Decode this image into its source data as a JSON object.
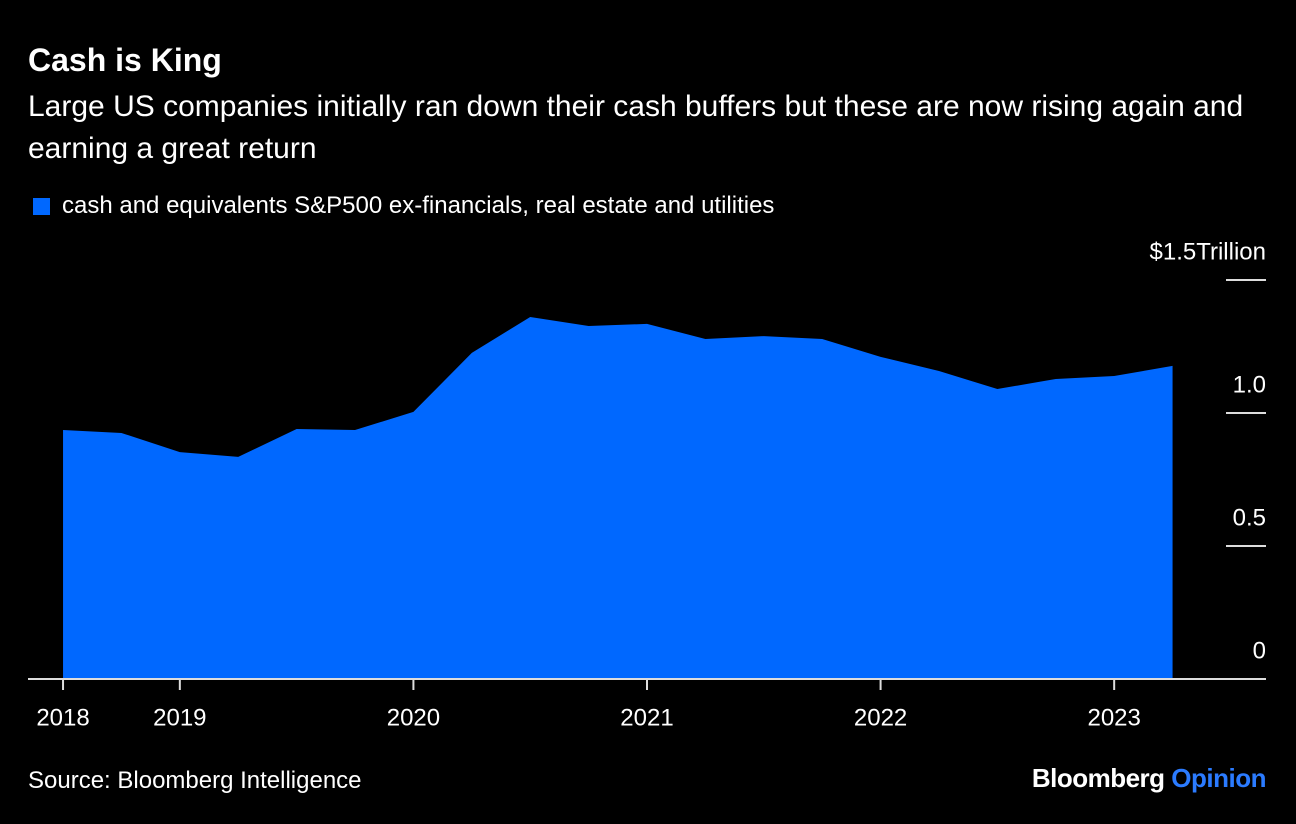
{
  "chart_data": {
    "type": "area",
    "title": "Cash is King",
    "subtitle": "Large US companies initially ran down their cash buffers but these are now rising again and earning a great return",
    "x": [
      2018.5,
      2018.75,
      2019,
      2019.25,
      2019.5,
      2019.75,
      2020,
      2020.25,
      2020.5,
      2020.75,
      2021,
      2021.25,
      2021.5,
      2021.75,
      2022,
      2022.25,
      2022.5,
      2022.75,
      2023,
      2023.25
    ],
    "series": [
      {
        "name": "cash and equivalents S&P500 ex-financials, real estate and utilities",
        "color": "#0068ff",
        "values": [
          0.936,
          0.925,
          0.853,
          0.835,
          0.94,
          0.936,
          1.004,
          1.226,
          1.361,
          1.327,
          1.335,
          1.278,
          1.289,
          1.278,
          1.211,
          1.158,
          1.09,
          1.128,
          1.139,
          1.177
        ]
      }
    ],
    "xlim": [
      2018.35,
      2023.65
    ],
    "xticks": [
      {
        "value": 2018.5,
        "label": "2018"
      },
      2019,
      2020,
      2021,
      2022,
      2023
    ],
    "ylim": [
      0,
      1.5
    ],
    "yticks": [
      0,
      0.5,
      {
        "value": 1,
        "label": "1.0"
      },
      {
        "value": 1.5,
        "label": "$1.5Trillion"
      }
    ],
    "grid": true,
    "legend": "top-left",
    "source": "Source: Bloomberg Intelligence"
  },
  "branding": {
    "name": "Bloomberg",
    "section": "Opinion"
  }
}
